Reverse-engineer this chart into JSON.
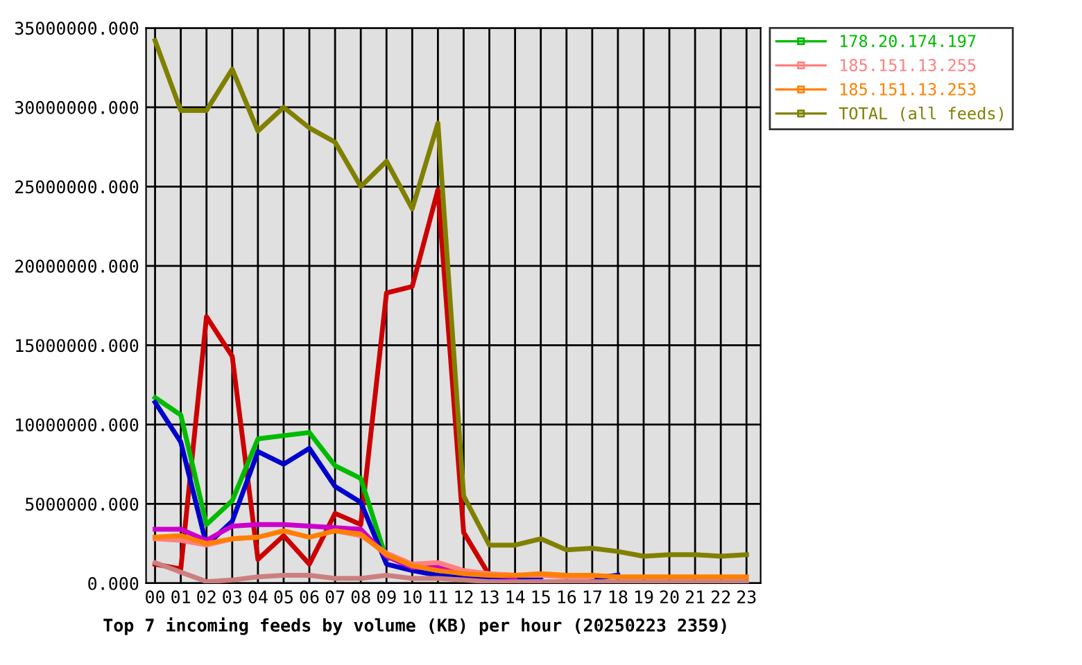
{
  "chart_data": {
    "type": "line",
    "title": "Top 7 incoming feeds by volume (KB) per hour (20250223 2359)",
    "categories": [
      "00",
      "01",
      "02",
      "03",
      "04",
      "05",
      "06",
      "07",
      "08",
      "09",
      "10",
      "11",
      "12",
      "13",
      "14",
      "15",
      "16",
      "17",
      "18",
      "19",
      "20",
      "21",
      "22",
      "23"
    ],
    "series": [
      {
        "color": "#cc0000",
        "values": [
          1200000,
          900000,
          16800000,
          14300000,
          1500000,
          3000000,
          1200000,
          4400000,
          3700000,
          18300000,
          18700000,
          24800000,
          3200000,
          500000,
          null,
          null,
          null,
          null,
          null,
          null,
          null,
          null,
          null,
          null
        ]
      },
      {
        "name": "178.20.174.197",
        "color": "#00bb00",
        "values": [
          11700000,
          10600000,
          3700000,
          5200000,
          9100000,
          9300000,
          9500000,
          7400000,
          6600000,
          1500000,
          null,
          null,
          null,
          null,
          null,
          null,
          null,
          null,
          null,
          null,
          null,
          null,
          null,
          null
        ]
      },
      {
        "color": "#0000cc",
        "values": [
          11400000,
          8900000,
          2400000,
          3900000,
          8300000,
          7500000,
          8500000,
          6100000,
          5100000,
          1200000,
          800000,
          500000,
          400000,
          400000,
          300000,
          400000,
          null,
          300000,
          500000,
          null,
          null,
          null,
          null,
          null
        ]
      },
      {
        "color": "#cc00cc",
        "values": [
          3400000,
          3400000,
          2700000,
          3600000,
          3700000,
          3700000,
          3600000,
          3500000,
          3400000,
          1700000,
          1000000,
          1000000,
          600000,
          500000,
          400000,
          null,
          null,
          null,
          null,
          null,
          null,
          null,
          null,
          null
        ]
      },
      {
        "name": "185.151.13.255",
        "color": "#ff8080",
        "values": [
          2800000,
          2700000,
          2400000,
          2800000,
          2900000,
          3300000,
          2900000,
          3300000,
          3000000,
          1900000,
          1200000,
          1300000,
          800000,
          600000,
          500000,
          500000,
          400000,
          400000,
          null,
          null,
          null,
          null,
          null,
          null
        ]
      },
      {
        "name": "185.151.13.253",
        "color": "#ff8000",
        "values": [
          2900000,
          3000000,
          2500000,
          2800000,
          2900000,
          3300000,
          2900000,
          3300000,
          3100000,
          1800000,
          1100000,
          800000,
          600000,
          500000,
          500000,
          600000,
          500000,
          500000,
          400000,
          400000,
          400000,
          400000,
          400000,
          400000
        ]
      },
      {
        "color": "#cc7f7f",
        "values": [
          1300000,
          700000,
          100000,
          200000,
          400000,
          500000,
          500000,
          300000,
          300000,
          500000,
          300000,
          300000,
          200000,
          100000,
          100000,
          100000,
          100000,
          100000,
          100000,
          100000,
          100000,
          100000,
          100000,
          100000
        ]
      },
      {
        "name": "TOTAL (all feeds)",
        "color": "#808000",
        "values": [
          34200000,
          29800000,
          29800000,
          32400000,
          28500000,
          30000000,
          28700000,
          27800000,
          25000000,
          26600000,
          23600000,
          29000000,
          5500000,
          2400000,
          2400000,
          2800000,
          2100000,
          2200000,
          2000000,
          1700000,
          1800000,
          1800000,
          1700000,
          1800000
        ]
      }
    ],
    "ylim": [
      0,
      35000000
    ],
    "yticks": [
      {
        "value": 0,
        "label": "0.000"
      },
      {
        "value": 5000000,
        "label": "5000000.000"
      },
      {
        "value": 10000000,
        "label": "10000000.000"
      },
      {
        "value": 15000000,
        "label": "15000000.000"
      },
      {
        "value": 20000000,
        "label": "20000000.000"
      },
      {
        "value": 25000000,
        "label": "25000000.000"
      },
      {
        "value": 30000000,
        "label": "30000000.000"
      },
      {
        "value": 35000000,
        "label": "35000000.000"
      }
    ],
    "grid": true,
    "legend": "right",
    "line_style": "solid"
  }
}
